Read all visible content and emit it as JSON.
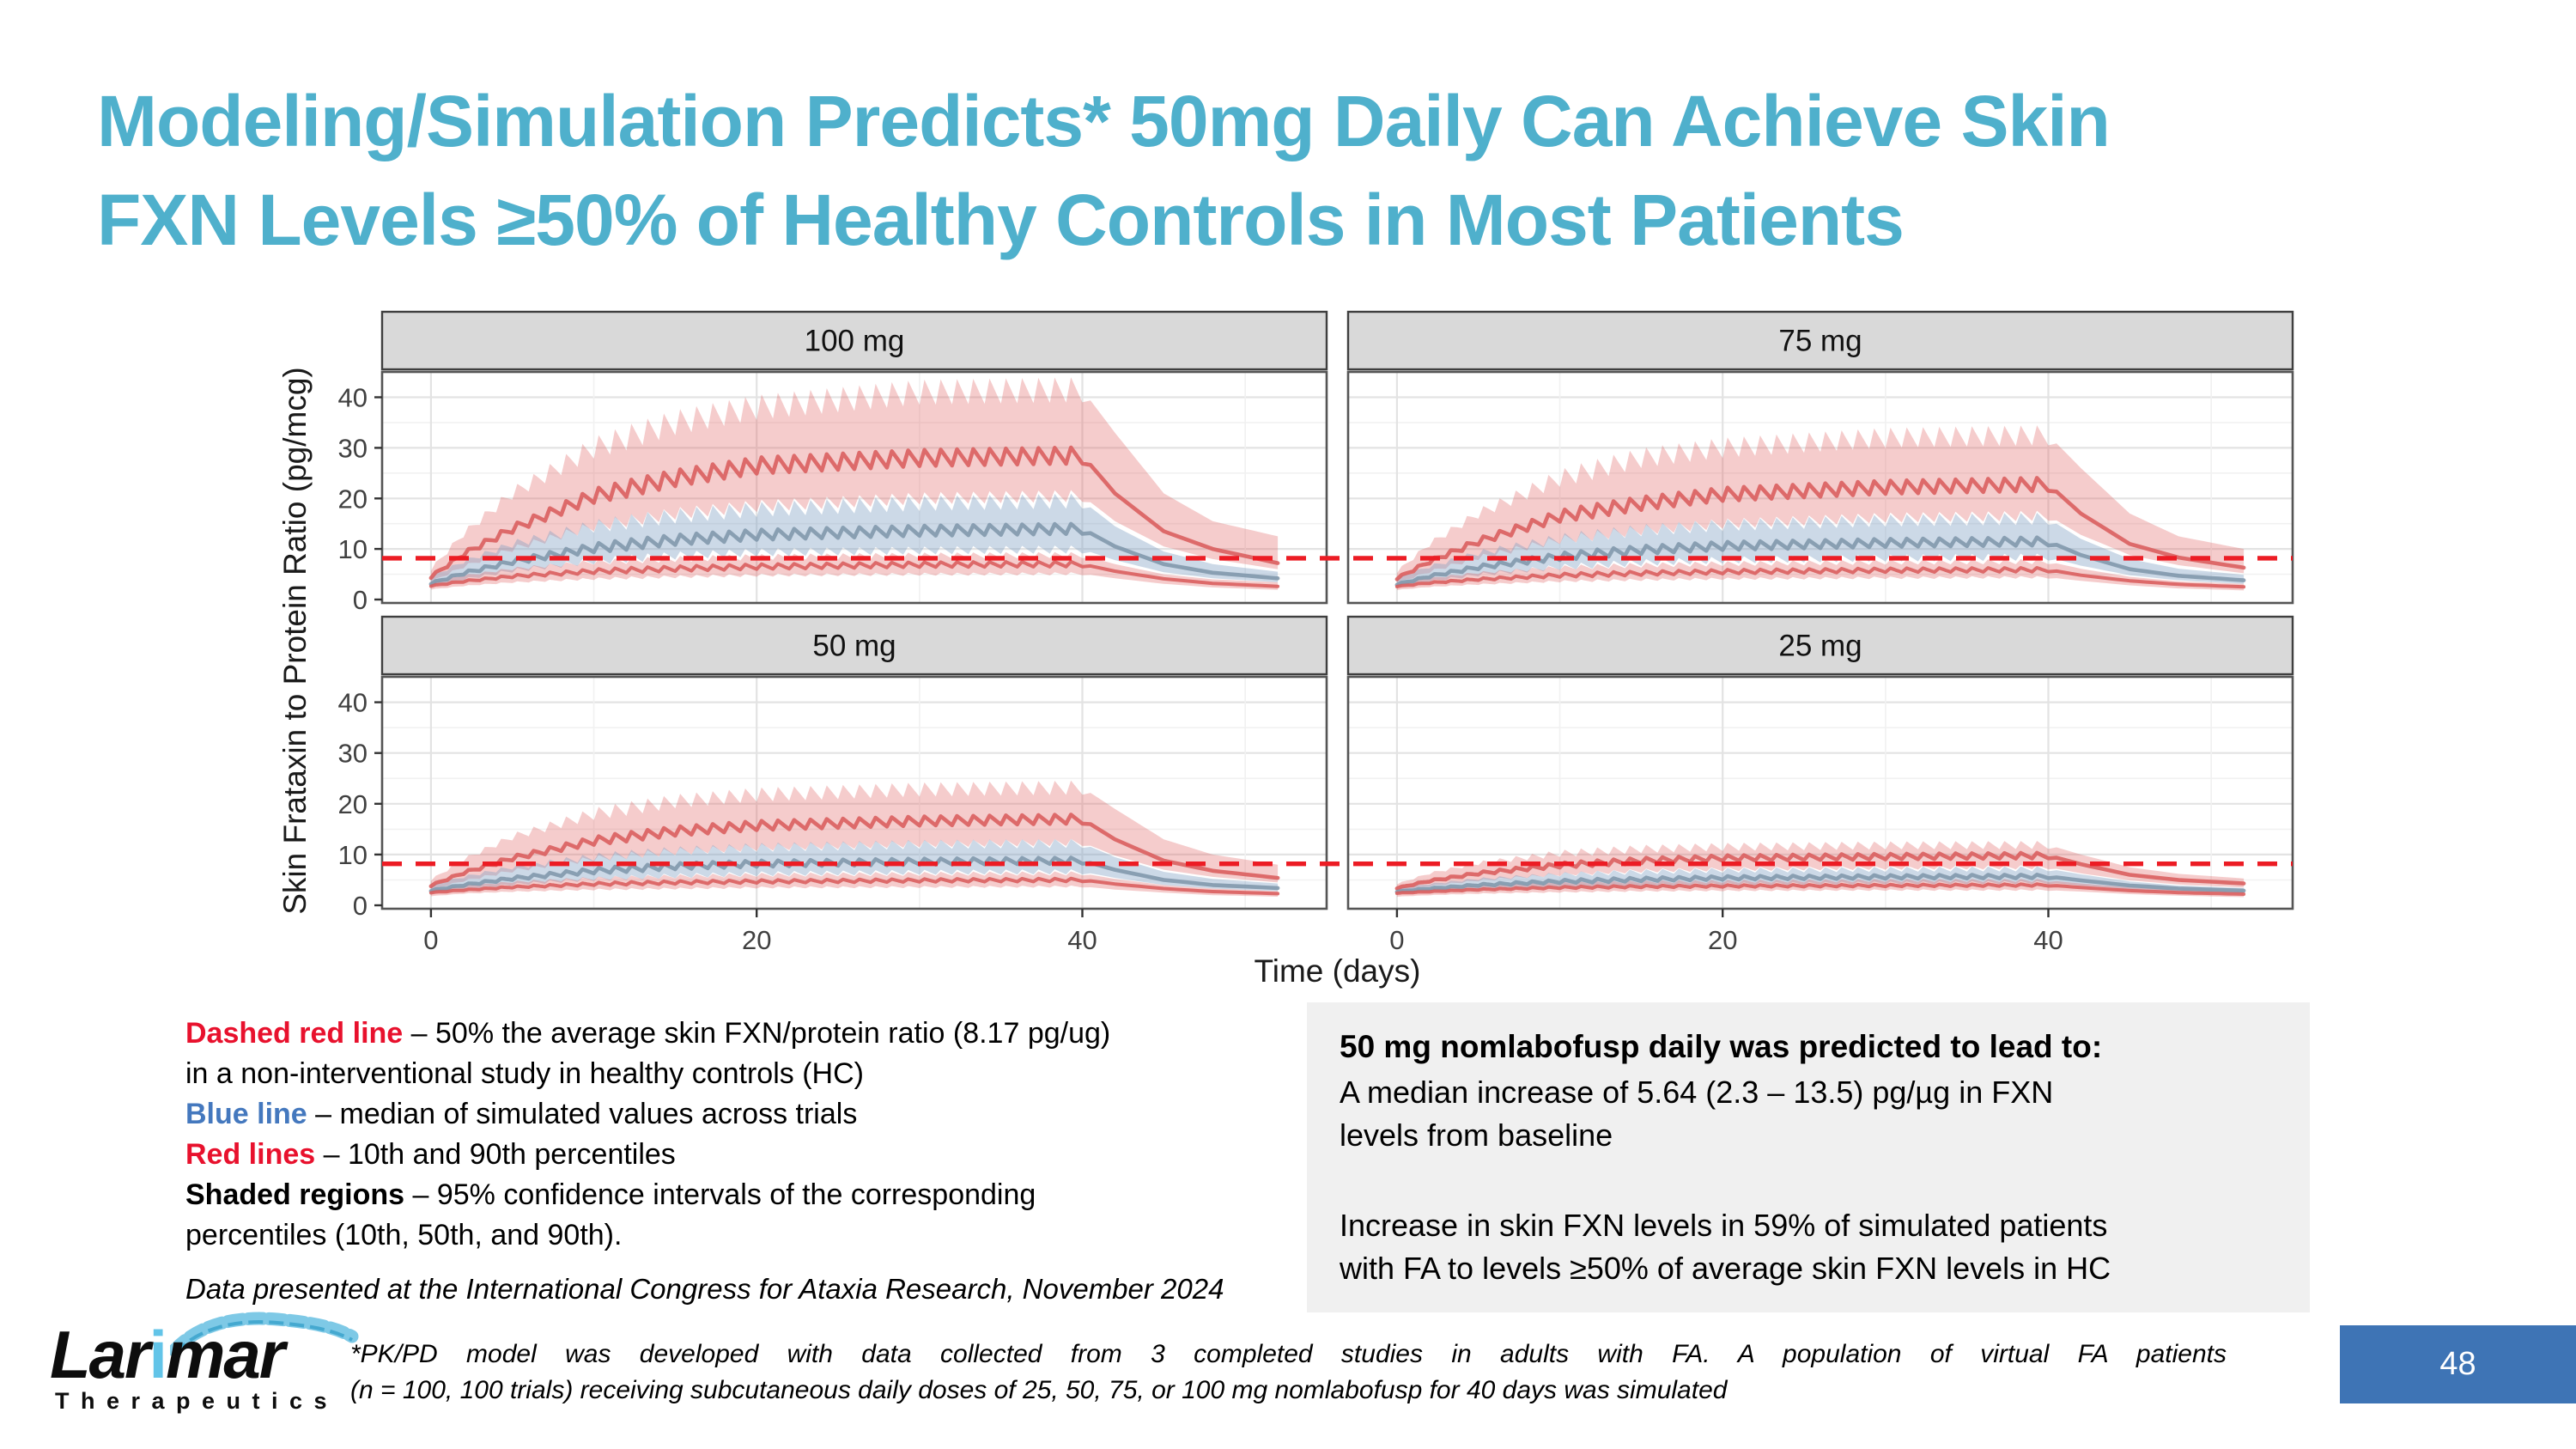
{
  "slide": {
    "title_line1": "Modeling/Simulation Predicts* 50mg Daily Can Achieve Skin",
    "title_line2": "FXN Levels ≥50% of Healthy Controls in Most Patients",
    "title_color": "#4FB0CC",
    "page_number": "48"
  },
  "legend": {
    "items": [
      {
        "label": "Dashed red line",
        "label_color": "#E8112D",
        "text": " – 50% the average skin FXN/protein ratio (8.17 pg/ug)\nin a non-interventional study in healthy controls (HC)"
      },
      {
        "label": "Blue line",
        "label_color": "#4478BE",
        "text": " – median of simulated values across trials"
      },
      {
        "label": "Red lines",
        "label_color": "#E8112D",
        "text": " – 10th and 90th percentiles"
      },
      {
        "label": "Shaded regions",
        "label_color": "#000000",
        "text": " – 95% confidence intervals of the corresponding\npercentiles (10th, 50th, and 90th)."
      }
    ],
    "source_note": "Data presented at the International Congress for Ataxia Research, November 2024"
  },
  "highlight_box": {
    "bg": "#F0F0F0",
    "heading": "50 mg nomlabofusp daily was predicted to lead to:",
    "para1": "A median increase of 5.64 (2.3 – 13.5) pg/µg in FXN\nlevels from baseline",
    "para2": "Increase in skin FXN levels in 59% of simulated patients\nwith FA  to levels ≥50% of average skin FXN levels in HC"
  },
  "footer": {
    "logo_parts": [
      "Lar",
      "i",
      "mar"
    ],
    "logo_i_color": "#62C4E8",
    "logo_secondary": "Therapeutics",
    "footnote_line1": "*PK/PD model was developed with data collected from 3 completed studies in adults with FA. A population of virtual FA patients",
    "footnote_line2": "(n = 100, 100 trials) receiving subcutaneous daily doses of 25, 50, 75, or 100 mg nomlabofusp for 40 days was simulated",
    "page_box_color": "#3E74B5"
  },
  "chart_data": {
    "type": "area",
    "title": "Simulated skin frataxin to protein ratio over time by nomlabofusp dose",
    "xlabel": "Time (days)",
    "ylabel": "Skin Frataxin to Protein Ratio (pg/mcg)",
    "x_ticks": [
      0,
      20,
      40
    ],
    "y_ticks": [
      0,
      10,
      20,
      30,
      40
    ],
    "x_range": [
      -3,
      55
    ],
    "y_range": [
      0,
      44
    ],
    "hc_threshold": 8.17,
    "dosing_days": 40,
    "sim_end_day": 52,
    "grid": true,
    "key_days": [
      0,
      2,
      5,
      10,
      15,
      20,
      30,
      40,
      42,
      45,
      48,
      52
    ],
    "colors": {
      "red_line": "#D95C5C",
      "blue_line": "#8096AB",
      "band_red": "#E06060",
      "band_red_opacity": 0.32,
      "band_blue": "#7FA1C4",
      "band_blue_opacity": 0.4,
      "threshold": "#EC1C24",
      "grid_major": "#E3E3E3",
      "grid_minor": "#F1F1F1",
      "strip_bg": "#D9D9D9",
      "strip_border": "#3F3F3F",
      "panel_border": "#555555",
      "axis_text": "#404040",
      "axis_title": "#1A1A1A"
    },
    "panels": [
      {
        "label": "100 mg",
        "bands": [
          {
            "name": "p90_ci",
            "color": "red",
            "osc_hi": 2.5,
            "osc_lo": 1.2,
            "hi": [
              6,
              13,
              21,
              30,
              35,
              38,
              41,
              41.5,
              33,
              21,
              15.5,
              12.5
            ],
            "lo": [
              3.5,
              6.5,
              10,
              14.5,
              17,
              18.5,
              20,
              20.5,
              15.5,
              10.5,
              8,
              6
            ]
          },
          {
            "name": "p50_ci",
            "color": "blue",
            "osc_hi": 1.5,
            "osc_lo": 0.8,
            "hi": [
              4.5,
              7.5,
              11,
              14.5,
              16.5,
              17.8,
              19,
              19.5,
              14.5,
              9.5,
              7,
              5.5
            ],
            "lo": [
              2.6,
              4,
              5.7,
              7.6,
              8.7,
              9.3,
              9.7,
              9.9,
              7.8,
              5.4,
              4.2,
              3.4
            ]
          },
          {
            "name": "p10_ci",
            "color": "red",
            "osc_hi": 0.6,
            "osc_lo": 0.3,
            "hi": [
              3.4,
              4.7,
              6.1,
              7.4,
              8,
              8.4,
              8.7,
              8.8,
              7,
              5,
              4,
              3.4
            ],
            "lo": [
              2,
              2.7,
              3.4,
              4.1,
              4.5,
              4.8,
              5,
              5.1,
              4.2,
              3.1,
              2.4,
              1.9
            ]
          }
        ],
        "lines": [
          {
            "name": "p90",
            "color": "red",
            "osc": 1.6,
            "values": [
              4.5,
              9,
              14,
              20.5,
              24,
              26.5,
              28,
              28.5,
              21,
              13.5,
              10,
              7.2
            ]
          },
          {
            "name": "p50",
            "color": "blue",
            "osc": 1.0,
            "values": [
              3.2,
              5.2,
              7.5,
              10.2,
              11.8,
              12.8,
              13.6,
              14,
              10.5,
              7,
              5.3,
              4.2
            ]
          },
          {
            "name": "p10",
            "color": "red",
            "osc": 0.5,
            "values": [
              2.7,
              3.6,
              4.6,
              5.6,
              6.1,
              6.5,
              6.9,
              7,
              5.6,
              4.1,
              3.2,
              2.6
            ]
          }
        ]
      },
      {
        "label": "75 mg",
        "bands": [
          {
            "name": "p90_ci",
            "color": "red",
            "osc_hi": 2.0,
            "osc_lo": 1.0,
            "hi": [
              5.5,
              11,
              17,
              24,
              28,
              30,
              32,
              32.5,
              26,
              17,
              12.5,
              10
            ],
            "lo": [
              3.3,
              5.5,
              8.3,
              11.8,
              13.7,
              15,
              16.2,
              16.6,
              12.8,
              8.8,
              6.8,
              5.2
            ]
          },
          {
            "name": "p50_ci",
            "color": "blue",
            "osc_hi": 1.2,
            "osc_lo": 0.7,
            "hi": [
              4.2,
              6.5,
              9.2,
              12,
              13.7,
              14.7,
              15.6,
              16,
              12,
              8,
              6.1,
              4.9
            ],
            "lo": [
              2.5,
              3.6,
              4.9,
              6.4,
              7.3,
              7.8,
              8.2,
              8.4,
              6.7,
              4.8,
              3.8,
              3.1
            ]
          },
          {
            "name": "p10_ci",
            "color": "red",
            "osc_hi": 0.5,
            "osc_lo": 0.25,
            "hi": [
              3.2,
              4.2,
              5.3,
              6.3,
              6.8,
              7.1,
              7.4,
              7.5,
              6.1,
              4.5,
              3.6,
              3.1
            ],
            "lo": [
              1.9,
              2.5,
              3,
              3.6,
              3.9,
              4.1,
              4.3,
              4.4,
              3.7,
              2.8,
              2.2,
              1.8
            ]
          }
        ],
        "lines": [
          {
            "name": "p90",
            "color": "red",
            "osc": 1.3,
            "values": [
              4.2,
              7.5,
              11.5,
              16.5,
              19,
              20.8,
              22.2,
              22.8,
              17,
              11,
              8.3,
              6.3
            ]
          },
          {
            "name": "p50",
            "color": "blue",
            "osc": 0.8,
            "values": [
              3,
              4.6,
              6.4,
              8.5,
              9.8,
              10.6,
              11.2,
              11.5,
              8.8,
              6,
              4.7,
              3.8
            ]
          },
          {
            "name": "p10",
            "color": "red",
            "osc": 0.4,
            "values": [
              2.6,
              3.3,
              4,
              4.8,
              5.2,
              5.5,
              5.8,
              5.9,
              4.8,
              3.7,
              3,
              2.5
            ]
          }
        ]
      },
      {
        "label": "50 mg",
        "bands": [
          {
            "name": "p90_ci",
            "color": "red",
            "osc_hi": 1.4,
            "osc_lo": 0.7,
            "hi": [
              5,
              9,
              13.5,
              18,
              20.5,
              21.8,
              22.8,
              23.2,
              19,
              13,
              10,
              8
            ],
            "lo": [
              3.1,
              4.8,
              6.8,
              9.2,
              10.6,
              11.4,
              12.1,
              12.4,
              9.8,
              7,
              5.6,
              4.5
            ]
          },
          {
            "name": "p50_ci",
            "color": "blue",
            "osc_hi": 0.9,
            "osc_lo": 0.5,
            "hi": [
              3.9,
              5.6,
              7.5,
              9.5,
              10.7,
              11.4,
              12,
              12.2,
              9.5,
              6.6,
              5.2,
              4.3
            ],
            "lo": [
              2.4,
              3.2,
              4.1,
              5.2,
              5.8,
              6.2,
              6.5,
              6.6,
              5.4,
              4,
              3.3,
              2.8
            ]
          },
          {
            "name": "p10_ci",
            "color": "red",
            "osc_hi": 0.4,
            "osc_lo": 0.2,
            "hi": [
              3,
              3.8,
              4.6,
              5.3,
              5.7,
              6,
              6.2,
              6.3,
              5.2,
              4,
              3.3,
              2.8
            ],
            "lo": [
              1.8,
              2.3,
              2.7,
              3.1,
              3.3,
              3.5,
              3.6,
              3.7,
              3.1,
              2.5,
              2,
              1.7
            ]
          }
        ],
        "lines": [
          {
            "name": "p90",
            "color": "red",
            "osc": 0.9,
            "values": [
              3.9,
              6.4,
              9.3,
              12.7,
              14.6,
              15.7,
              16.6,
              17,
              13,
              8.8,
              6.8,
              5.4
            ]
          },
          {
            "name": "p50",
            "color": "blue",
            "osc": 0.6,
            "values": [
              2.9,
              4,
              5.3,
              6.8,
              7.7,
              8.2,
              8.6,
              8.8,
              7,
              5,
              4,
              3.4
            ]
          },
          {
            "name": "p10",
            "color": "red",
            "osc": 0.3,
            "values": [
              2.5,
              3,
              3.6,
              4.2,
              4.5,
              4.7,
              4.9,
              5,
              4.2,
              3.3,
              2.7,
              2.3
            ]
          }
        ]
      },
      {
        "label": "25 mg",
        "bands": [
          {
            "name": "p90_ci",
            "color": "red",
            "osc_hi": 0.8,
            "osc_lo": 0.4,
            "hi": [
              4.2,
              6.3,
              8.3,
              10.2,
              11.1,
              11.5,
              11.8,
              11.9,
              10,
              7.5,
              6.2,
              5.3
            ],
            "lo": [
              2.8,
              3.8,
              4.9,
              6.1,
              6.8,
              7.1,
              7.4,
              7.5,
              6.3,
              4.9,
              4.1,
              3.5
            ]
          },
          {
            "name": "p50_ci",
            "color": "blue",
            "osc_hi": 0.5,
            "osc_lo": 0.3,
            "hi": [
              3.3,
              4.2,
              5.2,
              6.1,
              6.6,
              6.9,
              7.1,
              7.2,
              6.1,
              4.7,
              3.9,
              3.4
            ],
            "lo": [
              2.3,
              2.7,
              3.2,
              3.7,
              4,
              4.2,
              4.4,
              4.5,
              3.9,
              3.2,
              2.7,
              2.4
            ]
          },
          {
            "name": "p10_ci",
            "color": "red",
            "osc_hi": 0.3,
            "osc_lo": 0.15,
            "hi": [
              2.8,
              3.3,
              3.8,
              4.3,
              4.6,
              4.7,
              4.9,
              4.9,
              4.3,
              3.5,
              3,
              2.6
            ],
            "lo": [
              1.7,
              2,
              2.3,
              2.6,
              2.8,
              2.9,
              3,
              3,
              2.7,
              2.2,
              1.9,
              1.6
            ]
          }
        ],
        "lines": [
          {
            "name": "p90",
            "color": "red",
            "osc": 0.55,
            "values": [
              3.4,
              4.8,
              6.3,
              7.9,
              8.8,
              9.3,
              9.6,
              9.8,
              8.1,
              6,
              5,
              4.3
            ]
          },
          {
            "name": "p50",
            "color": "blue",
            "osc": 0.35,
            "values": [
              2.7,
              3.3,
              4,
              4.7,
              5.1,
              5.4,
              5.6,
              5.7,
              4.9,
              3.9,
              3.3,
              2.9
            ]
          },
          {
            "name": "p10",
            "color": "red",
            "osc": 0.2,
            "values": [
              2.4,
              2.7,
              3.1,
              3.5,
              3.7,
              3.8,
              3.9,
              4,
              3.5,
              2.9,
              2.5,
              2.2
            ]
          }
        ]
      }
    ]
  }
}
